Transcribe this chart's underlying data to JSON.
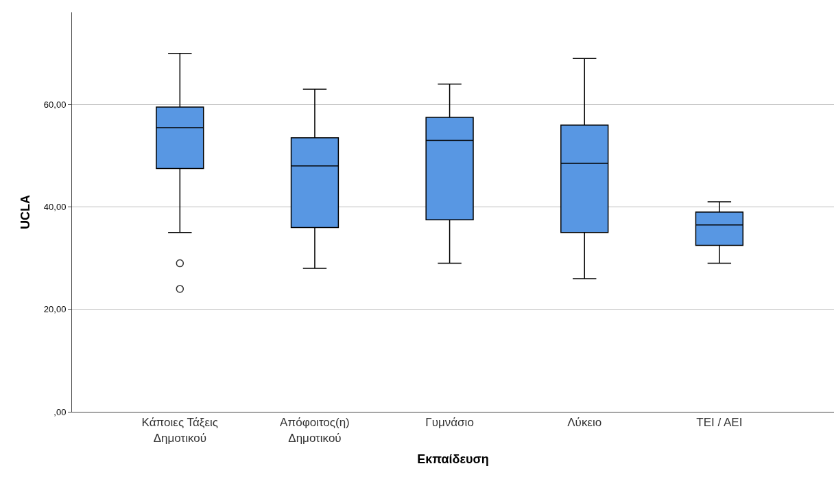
{
  "chart_data": {
    "type": "box",
    "xlabel": "Εκπαίδευση",
    "ylabel": "UCLA",
    "categories": [
      "Κάποιες Τάξεις Δημοτικού",
      "Απόφοιτος(η) Δημοτικού",
      "Γυμνάσιο",
      "Λύκειο",
      "ΤΕΙ / ΑΕΙ"
    ],
    "boxes": [
      {
        "low": 35,
        "q1": 47.5,
        "median": 55.5,
        "q3": 59.5,
        "high": 70,
        "outliers": [
          29,
          24
        ]
      },
      {
        "low": 28,
        "q1": 36,
        "median": 48,
        "q3": 53.5,
        "high": 63
      },
      {
        "low": 29,
        "q1": 37.5,
        "median": 53,
        "q3": 57.5,
        "high": 64
      },
      {
        "low": 26,
        "q1": 35,
        "median": 48.5,
        "q3": 56,
        "high": 69
      },
      {
        "low": 29,
        "q1": 32.5,
        "median": 36.5,
        "q3": 39,
        "high": 41
      }
    ],
    "color": "#5897e3",
    "ylim": [
      0,
      78
    ],
    "yticks": [
      {
        "value": 0,
        "label": ",00"
      },
      {
        "value": 20,
        "label": "20,00"
      },
      {
        "value": 40,
        "label": "40,00"
      },
      {
        "value": 60,
        "label": "60,00"
      }
    ],
    "grid": "y"
  }
}
